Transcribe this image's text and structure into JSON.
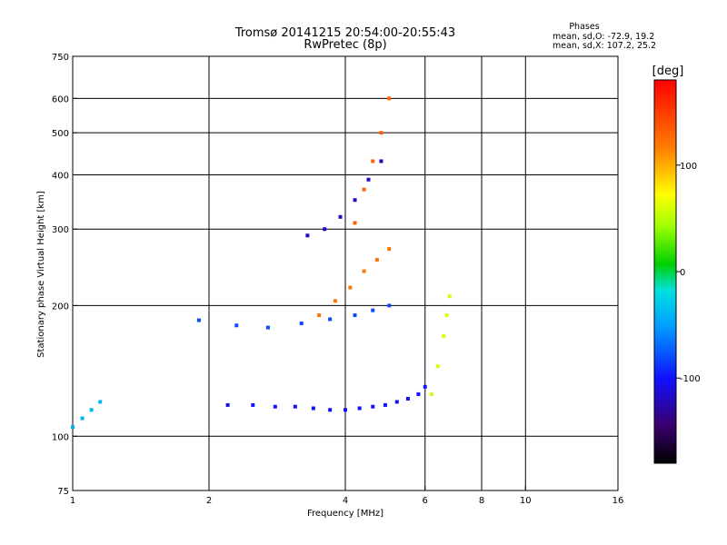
{
  "chart_data": {
    "type": "scatter",
    "title": "Tromsø 20141215 20:54:00-20:55:43",
    "subtitle": "RwPretec (8p)",
    "phase_box": {
      "heading": "Phases",
      "line1": "mean, sd,O: -72.9, 19.2",
      "line2": "mean, sd,X: 107.2, 25.2"
    },
    "xlabel": "Frequency [MHz]",
    "ylabel": "Stationary phase Virtual Height [km]",
    "x_scale": "log",
    "y_scale": "log",
    "xlim": [
      1,
      16
    ],
    "ylim": [
      75,
      750
    ],
    "x_ticks": [
      1,
      2,
      4,
      6,
      8,
      10,
      16
    ],
    "x_tick_labels": [
      "1",
      "2",
      "4",
      "6",
      "8",
      "10",
      "16"
    ],
    "x_grid": [
      2,
      4,
      6,
      8,
      10
    ],
    "y_ticks": [
      75,
      100,
      200,
      300,
      400,
      500,
      600,
      750
    ],
    "y_tick_labels": [
      "75",
      "100",
      "200",
      "300",
      "400",
      "500",
      "600",
      "750"
    ],
    "y_grid": [
      100,
      200,
      300,
      400,
      500,
      600
    ],
    "colorbar": {
      "label": "[deg]",
      "range": [
        -180,
        180
      ],
      "ticks": [
        100,
        0,
        -100
      ],
      "tick_labels": [
        "100",
        "0",
        "-100"
      ],
      "colormap": "rainbow"
    },
    "series": [
      {
        "x": [
          2.2,
          2.5,
          2.8,
          3.1,
          3.4,
          3.7,
          4.0,
          4.3,
          4.6,
          4.9,
          5.2,
          5.5,
          5.8,
          6.0
        ],
        "y": [
          118,
          118,
          117,
          117,
          116,
          115,
          115,
          116,
          117,
          118,
          120,
          122,
          125,
          130
        ],
        "phase": -100
      },
      {
        "x": [
          1.9,
          2.3,
          2.7,
          3.2,
          3.7,
          4.2,
          4.6,
          5.0
        ],
        "y": [
          185,
          180,
          178,
          182,
          186,
          190,
          195,
          200
        ],
        "phase": -80
      },
      {
        "x": [
          3.3,
          3.6,
          3.9,
          4.2,
          4.5,
          4.8
        ],
        "y": [
          290,
          300,
          320,
          350,
          390,
          430
        ],
        "phase": -120
      },
      {
        "x": [
          3.5,
          3.8,
          4.1,
          4.4,
          4.7,
          5.0
        ],
        "y": [
          190,
          205,
          220,
          240,
          255,
          270
        ],
        "phase": 120
      },
      {
        "x": [
          4.2,
          4.4,
          4.6,
          4.8,
          5.0
        ],
        "y": [
          310,
          370,
          430,
          500,
          600
        ],
        "phase": 130
      },
      {
        "x": [
          6.2,
          6.4,
          6.6,
          6.7,
          6.8
        ],
        "y": [
          125,
          145,
          170,
          190,
          210
        ],
        "phase": 60
      },
      {
        "x": [
          1.0,
          1.05,
          1.1,
          1.15
        ],
        "y": [
          105,
          110,
          115,
          120
        ],
        "phase": -40
      }
    ]
  }
}
